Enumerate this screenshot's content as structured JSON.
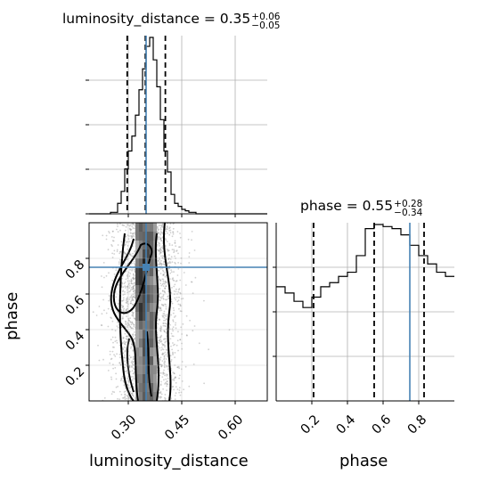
{
  "chart_data": {
    "type": "corner",
    "parameters": [
      "luminosity_distance",
      "phase"
    ],
    "truth_color": "#4682b4",
    "truths": {
      "luminosity_distance": 0.35,
      "phase": 0.75
    },
    "panels": [
      {
        "kind": "histogram",
        "parameter": "luminosity_distance",
        "title": {
          "text": "luminosity_distance = 0.35",
          "plus": "+0.06",
          "minus": "−0.05"
        },
        "xlim": [
          0.19,
          0.69
        ],
        "bins_edges": [
          0.19,
          0.2,
          0.21,
          0.22,
          0.23,
          0.24,
          0.25,
          0.26,
          0.27,
          0.28,
          0.29,
          0.3,
          0.31,
          0.32,
          0.33,
          0.34,
          0.35,
          0.36,
          0.37,
          0.38,
          0.39,
          0.4,
          0.41,
          0.42,
          0.43,
          0.44,
          0.45,
          0.46,
          0.47,
          0.48,
          0.49,
          0.5,
          0.51,
          0.52,
          0.53,
          0.54,
          0.55,
          0.56,
          0.57,
          0.58,
          0.59,
          0.6,
          0.61,
          0.62,
          0.63,
          0.64,
          0.65,
          0.66,
          0.67,
          0.68,
          0.69
        ],
        "counts": [
          0,
          0,
          0,
          0,
          0,
          0,
          1,
          1,
          7,
          15,
          30,
          42,
          52,
          66,
          83,
          97,
          112,
          118,
          103,
          85,
          63,
          42,
          28,
          13,
          7,
          5,
          3,
          2,
          1,
          1,
          0,
          0,
          0,
          0,
          0,
          0,
          0,
          0,
          0,
          0,
          0,
          0,
          0,
          0,
          0,
          0,
          0,
          0,
          0,
          0
        ],
        "quantiles": [
          0.297,
          0.348,
          0.404
        ],
        "grid": true
      },
      {
        "kind": "histogram",
        "parameter": "phase",
        "title": {
          "text": "phase = 0.55",
          "plus": "+0.28",
          "minus": "−0.34"
        },
        "xlim": [
          0.0,
          1.0
        ],
        "bins_edges": [
          0,
          0.05,
          0.1,
          0.15,
          0.2,
          0.25,
          0.3,
          0.35,
          0.4,
          0.45,
          0.5,
          0.55,
          0.6,
          0.65,
          0.7,
          0.75,
          0.8,
          0.85,
          0.9,
          0.95,
          1.0
        ],
        "counts": [
          55,
          52,
          48,
          45,
          50,
          55,
          57,
          60,
          62,
          70,
          83,
          85,
          84,
          83,
          80,
          75,
          70,
          66,
          62,
          60
        ],
        "quantiles": [
          0.21,
          0.55,
          0.83
        ],
        "grid": true
      },
      {
        "kind": "2d",
        "x": "luminosity_distance",
        "y": "phase",
        "xlim": [
          0.19,
          0.69
        ],
        "ylim": [
          0.0,
          1.0
        ],
        "grid": true
      }
    ],
    "axes": {
      "luminosity_distance": {
        "label": "luminosity_distance",
        "ticks": [
          "0.30",
          "0.45",
          "0.60"
        ],
        "tick_values": [
          0.3,
          0.45,
          0.6
        ]
      },
      "phase": {
        "label": "phase",
        "ticks": [
          "0.2",
          "0.4",
          "0.6",
          "0.8"
        ],
        "tick_values": [
          0.2,
          0.4,
          0.6,
          0.8
        ]
      }
    }
  }
}
